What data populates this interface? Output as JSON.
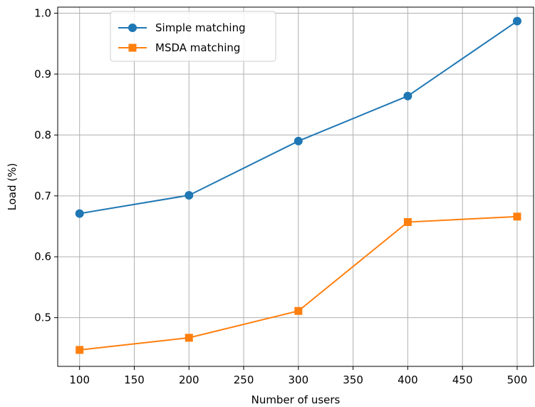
{
  "chart_data": {
    "type": "line",
    "title": "",
    "xlabel": "Number of users",
    "ylabel": "Load (%)",
    "x": [
      100,
      200,
      300,
      400,
      500
    ],
    "xlim": [
      80,
      515
    ],
    "ylim": [
      0.42,
      1.01
    ],
    "xticks": [
      100,
      150,
      200,
      250,
      300,
      350,
      400,
      450,
      500
    ],
    "yticks": [
      0.5,
      0.6,
      0.7,
      0.8,
      0.9,
      1.0
    ],
    "grid": true,
    "legend_position": "upper-left",
    "series": [
      {
        "name": "Simple matching",
        "values": [
          0.671,
          0.701,
          0.79,
          0.864,
          0.987
        ],
        "color": "#1f77b4",
        "marker": "circle"
      },
      {
        "name": "MSDA matching",
        "values": [
          0.447,
          0.467,
          0.511,
          0.657,
          0.666
        ],
        "color": "#ff7f0e",
        "marker": "square"
      }
    ]
  }
}
